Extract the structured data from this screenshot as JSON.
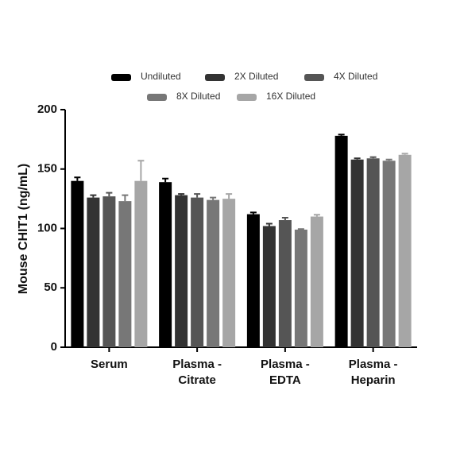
{
  "chart_data": {
    "type": "bar",
    "y_label": "Mouse CHIT1 (ng/mL)",
    "categories": [
      [
        "Serum"
      ],
      [
        "Plasma -",
        "Citrate"
      ],
      [
        "Plasma -",
        "EDTA"
      ],
      [
        "Plasma -",
        "Heparin"
      ]
    ],
    "series": [
      {
        "name": "Undiluted",
        "color": "#000000",
        "values": [
          140,
          139,
          112,
          178
        ],
        "errors": [
          3,
          3,
          1.5,
          1
        ]
      },
      {
        "name": "2X Diluted",
        "color": "#333333",
        "values": [
          126,
          128,
          102,
          158
        ],
        "errors": [
          2,
          1,
          2,
          1
        ]
      },
      {
        "name": "4X Diluted",
        "color": "#555555",
        "values": [
          127,
          126,
          107,
          159
        ],
        "errors": [
          3,
          3,
          2,
          1
        ]
      },
      {
        "name": "8X Diluted",
        "color": "#777777",
        "values": [
          123,
          124,
          99,
          157
        ],
        "errors": [
          5,
          2,
          0.5,
          1
        ]
      },
      {
        "name": "16X Diluted",
        "color": "#a6a6a6",
        "values": [
          140,
          125,
          110,
          162
        ],
        "errors": [
          17,
          4,
          1.5,
          1
        ]
      }
    ],
    "ylim": [
      0,
      200
    ],
    "yticks": [
      0,
      50,
      100,
      150,
      200
    ]
  }
}
